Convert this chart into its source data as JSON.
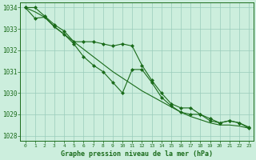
{
  "title": "Graphe pression niveau de la mer (hPa)",
  "x": [
    0,
    1,
    2,
    3,
    4,
    5,
    6,
    7,
    8,
    9,
    10,
    11,
    12,
    13,
    14,
    15,
    16,
    17,
    18,
    19,
    20,
    21,
    22,
    23
  ],
  "line_upper": [
    1034.0,
    1034.0,
    1033.6,
    1033.2,
    1032.9,
    1032.4,
    1032.4,
    1032.4,
    1032.3,
    1032.2,
    1032.3,
    1032.2,
    1031.3,
    1030.6,
    1030.0,
    1029.5,
    1029.3,
    1029.3,
    1029.0,
    1028.8,
    1028.6,
    1028.7,
    1028.6,
    1028.4
  ],
  "line_smooth": [
    1034.0,
    1033.8,
    1033.55,
    1033.1,
    1032.75,
    1032.4,
    1032.05,
    1031.7,
    1031.35,
    1031.0,
    1030.7,
    1030.4,
    1030.1,
    1029.85,
    1029.6,
    1029.35,
    1029.1,
    1028.9,
    1028.75,
    1028.6,
    1028.5,
    1028.5,
    1028.45,
    1028.35
  ],
  "line_lower": [
    1034.0,
    1033.5,
    1033.55,
    1033.1,
    1032.75,
    1032.3,
    1031.7,
    1031.3,
    1031.0,
    1030.5,
    1030.0,
    1031.1,
    1031.1,
    1030.5,
    1029.8,
    1029.4,
    1029.1,
    1029.0,
    1029.0,
    1028.7,
    1028.6,
    1028.7,
    1028.6,
    1028.35
  ],
  "line_color": "#1a6b1a",
  "bg_color": "#cceedd",
  "grid_color": "#99ccbb",
  "text_color": "#1a6b1a",
  "ylabel_min": 1028,
  "ylabel_max": 1034,
  "ylabel_step": 1,
  "marker": "D",
  "marker_size": 2.0,
  "linewidth": 0.8
}
